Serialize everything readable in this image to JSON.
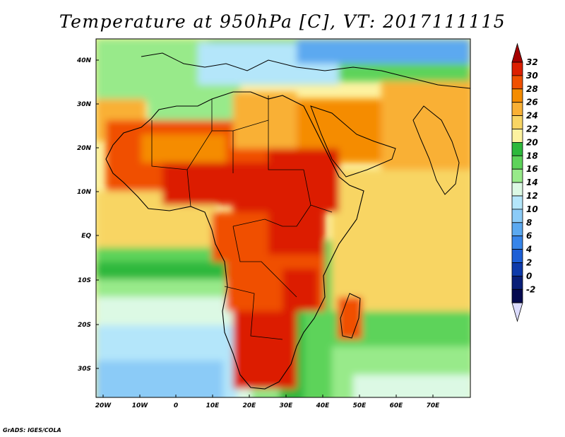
{
  "title": "Temperature at 950hPa [C], VT: 2017111115",
  "credit": "GrADS: IGES/COLA",
  "map": {
    "lat_labels": [
      "40N",
      "30N",
      "20N",
      "10N",
      "EQ",
      "10S",
      "20S",
      "30S"
    ],
    "lon_labels": [
      "20W",
      "10W",
      "0",
      "10E",
      "20E",
      "30E",
      "40E",
      "50E",
      "60E",
      "70E"
    ]
  },
  "colorbar": {
    "labels": [
      "32",
      "30",
      "28",
      "26",
      "24",
      "22",
      "20",
      "18",
      "16",
      "14",
      "12",
      "10",
      "8",
      "6",
      "4",
      "2",
      "0",
      "-2"
    ],
    "colors": [
      "#a50000",
      "#dc1f00",
      "#f05000",
      "#f58c00",
      "#f9b035",
      "#f8d564",
      "#fdf2a0",
      "#2db83c",
      "#5dd35a",
      "#98ea8a",
      "#dcf9e4",
      "#b4e6fa",
      "#8bcbf7",
      "#5ba9f0",
      "#3785ea",
      "#1d5fd6",
      "#0e3aaa",
      "#0a1f78",
      "#050a50",
      "#dcdcff"
    ]
  }
}
